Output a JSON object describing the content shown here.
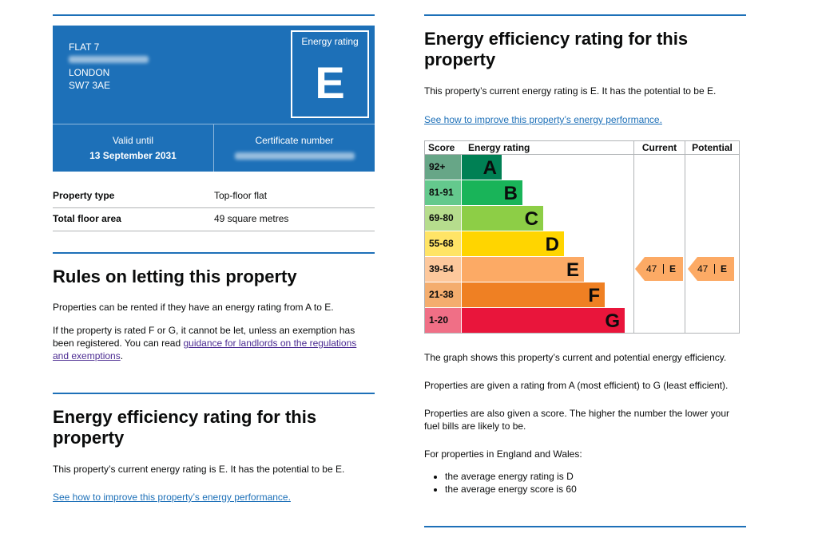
{
  "header": {
    "address": [
      "FLAT 7",
      "LONDON",
      "SW7 3AE"
    ],
    "energy_rating_label": "Energy rating",
    "energy_rating": "E",
    "valid_until_label": "Valid until",
    "valid_until": "13 September 2031",
    "certificate_number_label": "Certificate number"
  },
  "summary": [
    [
      "Property type",
      "Top-floor flat"
    ],
    [
      "Total floor area",
      "49 square metres"
    ]
  ],
  "letting": {
    "heading": "Rules on letting this property",
    "paragraph_1": "Properties can be rented if they have an energy rating from A to E.",
    "paragraph_2": "If the property is rated F or G, it cannot be let, unless an exemption has been registered. You can read ",
    "paragraph_2_link": "guidance for landlords on the regulations and exemptions",
    "paragraph_2_end": "."
  },
  "efficiency": {
    "heading": "Energy efficiency rating for this property",
    "text": "This property’s current energy rating is E. It has the potential to be E.",
    "link": "See how to improve this property’s energy performance."
  },
  "rating_chart": {
    "headers": [
      "Score",
      "Energy rating",
      "Current",
      "Potential"
    ],
    "bands": [
      {
        "score": "92+",
        "letter": "A"
      },
      {
        "score": "81-91",
        "letter": "B"
      },
      {
        "score": "69-80",
        "letter": "C"
      },
      {
        "score": "55-68",
        "letter": "D"
      },
      {
        "score": "39-54",
        "letter": "E"
      },
      {
        "score": "21-38",
        "letter": "F"
      },
      {
        "score": "1-20",
        "letter": "G"
      }
    ],
    "current": {
      "score": 47,
      "rating": "E"
    },
    "potential": {
      "score": 47,
      "rating": "E"
    }
  },
  "explanation": {
    "paragraphs": [
      "The graph shows this property’s current and potential energy efficiency.",
      "Properties are given a rating from A (most efficient) to G (least efficient).",
      "Properties are also given a score. The higher the number the lower your fuel bills are likely to be."
    ],
    "england_wales": "For properties in England and Wales:",
    "bullets": [
      "the average energy rating is D",
      "the average energy score is 60"
    ]
  }
}
